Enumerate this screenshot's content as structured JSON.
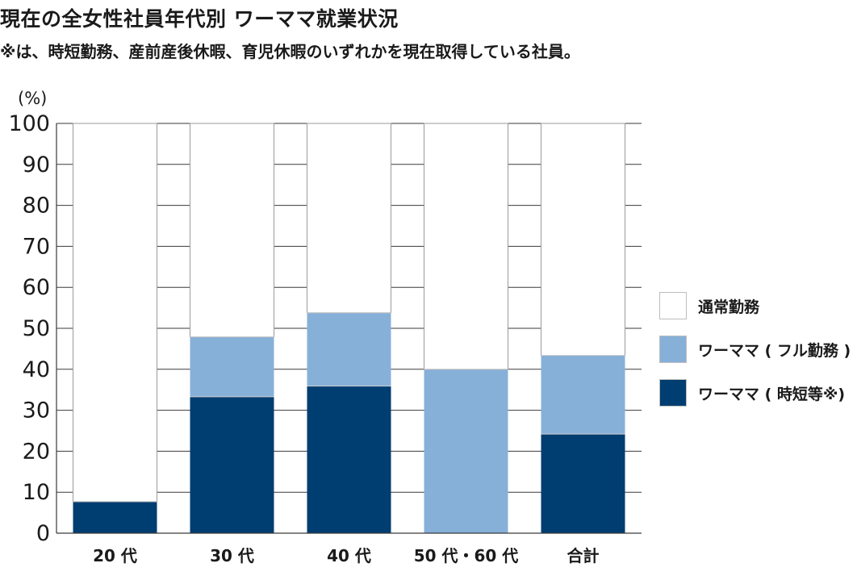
{
  "header": {
    "title": "現在の全女性社員年代別 ワーママ就業状況",
    "note": "※は、時短勤務、産前産後休暇、育児休暇のいずれかを現在取得している社員。"
  },
  "chart_data": {
    "type": "bar",
    "stacked": true,
    "unit_label": "(%)",
    "ylim": [
      0,
      100
    ],
    "yticks": [
      0,
      10,
      20,
      30,
      40,
      50,
      60,
      70,
      80,
      90,
      100
    ],
    "grid": true,
    "legend_position": "right",
    "categories": [
      "20 代",
      "30 代",
      "40 代",
      "50 代・60 代",
      "合計"
    ],
    "series": [
      {
        "name": "ワーママ ( 時短等※)",
        "color": "#003d71",
        "values": [
          7.7,
          33.3,
          35.9,
          0,
          24.2
        ]
      },
      {
        "name": "ワーママ ( フル勤務 )",
        "color": "#87b0d9",
        "values": [
          0,
          14.6,
          17.9,
          40.0,
          19.2
        ]
      },
      {
        "name": "通常勤務",
        "color": "#ffffff",
        "values": [
          92.3,
          52.1,
          46.2,
          60.0,
          56.6
        ]
      }
    ]
  }
}
